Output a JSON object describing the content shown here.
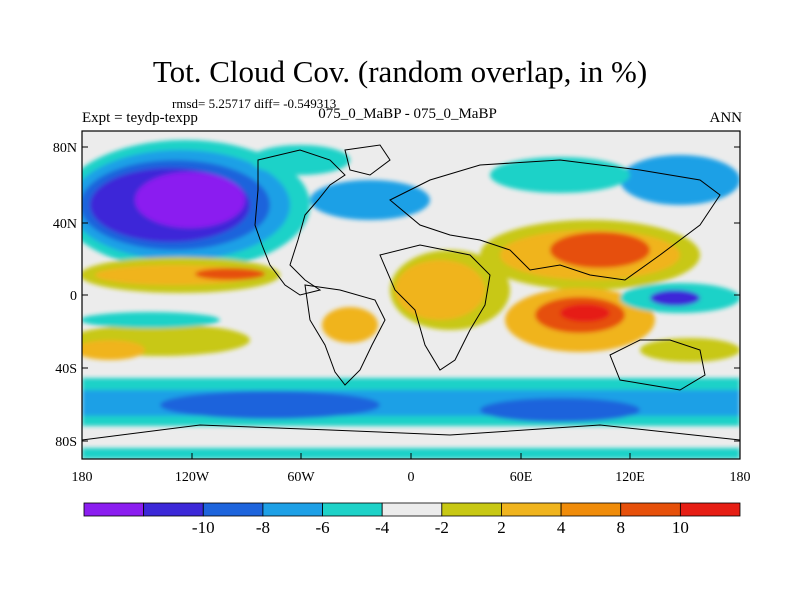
{
  "title": "Tot. Cloud Cov. (random overlap, in %)",
  "stats": "rmsd= 5.25717 diff= -0.549313",
  "experiment": "Expt = teydp-texpp",
  "comparison": "075_0_MaBP - 075_0_MaBP",
  "season": "ANN",
  "lat_labels": [
    "80N",
    "40N",
    "0",
    "40S",
    "80S"
  ],
  "lon_labels": [
    "180",
    "120W",
    "60W",
    "0",
    "60E",
    "120E",
    "180"
  ],
  "colorbar": {
    "colors": [
      "#8b1ef0",
      "#3c28d8",
      "#1e64dc",
      "#1ea0e6",
      "#1ed2c8",
      "#ececec",
      "#c8c814",
      "#f0b41e",
      "#f08c0a",
      "#e6500a",
      "#e61e14"
    ],
    "labels": [
      "-10",
      "-8",
      "-6",
      "-4",
      "-2",
      "2",
      "4",
      "8",
      "10"
    ]
  }
}
